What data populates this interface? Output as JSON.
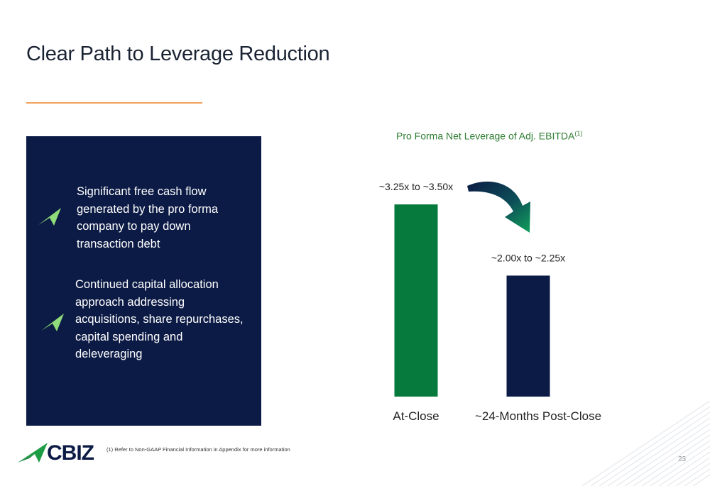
{
  "slide": {
    "title": "Clear Path to Leverage Reduction",
    "page_number": "23",
    "footnote": "(1) Refer to Non-GAAP Financial Information in Appendix for more information"
  },
  "panel": {
    "bullets": [
      "Significant free cash flow generated by the pro forma company to pay down transaction debt",
      "Continued capital allocation approach addressing acquisitions, share repurchases, capital spending and deleveraging"
    ]
  },
  "logo": {
    "text": "CBIZ"
  },
  "colors": {
    "navy": "#0c1b45",
    "green": "#067a3c",
    "accent_orange": "#f2a25c",
    "title_green": "#2e7d32"
  },
  "chart_data": {
    "type": "bar",
    "title": "Pro Forma Net Leverage of Adj. EBITDA",
    "title_superscript": "(1)",
    "categories": [
      "At-Close",
      "~24-Months Post-Close"
    ],
    "values": [
      3.375,
      2.125
    ],
    "data_labels": [
      "~3.25x to ~3.50x",
      "~2.00x to ~2.25x"
    ],
    "bar_colors": [
      "#067a3c",
      "#0c1b45"
    ],
    "ylim": [
      0,
      3.8
    ],
    "grid": false
  }
}
